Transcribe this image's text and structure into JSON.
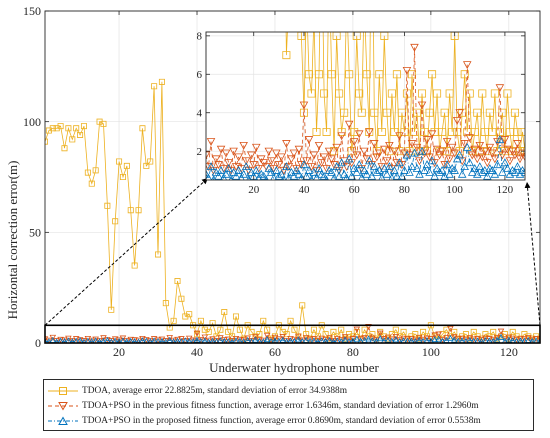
{
  "chart_data": [
    {
      "type": "line",
      "xlabel": "Underwater hydrophone number",
      "ylabel": "Horizontal correction error(m)",
      "xlim": [
        1,
        128
      ],
      "ylim": [
        0,
        150
      ],
      "xticks": [
        20,
        40,
        60,
        80,
        100,
        120
      ],
      "yticks": [
        0,
        50,
        100,
        150
      ],
      "grid": true,
      "legend_position": "bottom",
      "series": [
        {
          "name": "TDOA, average error 22.8825m, standard deviation of error 34.9388m",
          "color": "#EDB120",
          "marker": "square",
          "linestyle": "solid",
          "x": [
            1,
            2,
            3,
            4,
            5,
            6,
            7,
            8,
            9,
            10,
            11,
            12,
            13,
            14,
            15,
            16,
            17,
            18,
            19,
            20,
            21,
            22,
            23,
            24,
            25,
            26,
            27,
            28,
            29,
            30,
            31,
            32,
            33,
            34,
            35,
            36,
            37,
            38,
            39,
            40,
            41,
            42,
            43,
            44,
            45,
            46,
            47,
            48,
            49,
            50,
            51,
            52,
            53,
            54,
            55,
            56,
            57,
            58,
            59,
            60,
            61,
            62,
            63,
            64,
            65,
            66,
            67,
            68,
            69,
            70,
            71,
            72,
            73,
            74,
            75,
            76,
            77,
            78,
            79,
            80,
            81,
            82,
            83,
            84,
            85,
            86,
            87,
            88,
            89,
            90,
            91,
            92,
            93,
            94,
            95,
            96,
            97,
            98,
            99,
            100,
            101,
            102,
            103,
            104,
            105,
            106,
            107,
            108,
            109,
            110,
            111,
            112,
            113,
            114,
            115,
            116,
            117,
            118,
            119,
            120,
            121,
            122,
            123,
            124,
            125,
            126,
            127,
            128
          ],
          "y": [
            91,
            96,
            97,
            97,
            98,
            88,
            97,
            92,
            97,
            94,
            98,
            77,
            72,
            78,
            100,
            99,
            62,
            15,
            55,
            82,
            75,
            80,
            60,
            35,
            60,
            97,
            80,
            82,
            116,
            40,
            118,
            18,
            7,
            10,
            28,
            20,
            12,
            13,
            8,
            4,
            10,
            6,
            5,
            9,
            3,
            6,
            14,
            5,
            3,
            12,
            6,
            2,
            8,
            5,
            3,
            4,
            10,
            6,
            2,
            3,
            8,
            5,
            4,
            10,
            6,
            3,
            17,
            4,
            2,
            6,
            3,
            8,
            4,
            2,
            5,
            3,
            6,
            2,
            4,
            3,
            5,
            2,
            6,
            3,
            4,
            2,
            5,
            3,
            2,
            4,
            6,
            3,
            5,
            2,
            3,
            4,
            2,
            5,
            3,
            8,
            3,
            2,
            4,
            6,
            3,
            5,
            2,
            3,
            4,
            2,
            5,
            3,
            2,
            4,
            3,
            5,
            2,
            3,
            4,
            2,
            5,
            3,
            2,
            4,
            3,
            2,
            3,
            2
          ]
        },
        {
          "name": "TDOA+PSO in the previous fitness function, average error 1.6346m, standard deviation of error 1.2960m",
          "color": "#D95319",
          "marker": "triangle-down",
          "linestyle": "dashed",
          "x": [
            1,
            2,
            3,
            4,
            5,
            6,
            7,
            8,
            9,
            10,
            11,
            12,
            13,
            14,
            15,
            16,
            17,
            18,
            19,
            20,
            21,
            22,
            23,
            24,
            25,
            26,
            27,
            28,
            29,
            30,
            31,
            32,
            33,
            34,
            35,
            36,
            37,
            38,
            39,
            40,
            41,
            42,
            43,
            44,
            45,
            46,
            47,
            48,
            49,
            50,
            51,
            52,
            53,
            54,
            55,
            56,
            57,
            58,
            59,
            60,
            61,
            62,
            63,
            64,
            65,
            66,
            67,
            68,
            69,
            70,
            71,
            72,
            73,
            74,
            75,
            76,
            77,
            78,
            79,
            80,
            81,
            82,
            83,
            84,
            85,
            86,
            87,
            88,
            89,
            90,
            91,
            92,
            93,
            94,
            95,
            96,
            97,
            98,
            99,
            100,
            101,
            102,
            103,
            104,
            105,
            106,
            107,
            108,
            109,
            110,
            111,
            112,
            113,
            114,
            115,
            116,
            117,
            118,
            119,
            120,
            121,
            122,
            123,
            124,
            125,
            126,
            127,
            128
          ],
          "y": [
            1.8,
            1.2,
            2.5,
            1.0,
            1.6,
            1.3,
            2.1,
            1.1,
            1.9,
            1.4,
            1.0,
            2.0,
            1.2,
            1.7,
            1.1,
            2.3,
            1.5,
            1.0,
            1.8,
            1.3,
            2.2,
            1.1,
            1.6,
            1.4,
            1.2,
            2.0,
            1.5,
            1.1,
            1.9,
            1.3,
            1.7,
            1.0,
            2.4,
            1.2,
            1.6,
            1.9,
            1.1,
            2.1,
            1.3,
            4.4,
            1.5,
            2.6,
            1.2,
            1.8,
            1.0,
            2.3,
            1.4,
            1.7,
            1.1,
            2.0,
            1.6,
            1.3,
            2.2,
            1.0,
            2.8,
            1.5,
            1.2,
            3.4,
            1.4,
            2.5,
            1.8,
            2.9,
            1.1,
            2.0,
            1.6,
            3.0,
            1.3,
            2.4,
            1.7,
            1.9,
            1.2,
            2.1,
            1.5,
            2.3,
            1.1,
            2.0,
            1.4,
            2.8,
            1.3,
            1.9,
            6.2,
            1.8,
            2.4,
            7.4,
            2.2,
            1.5,
            4.4,
            1.9,
            2.6,
            1.7,
            2.9,
            1.4,
            2.1,
            1.8,
            2.0,
            1.3,
            2.5,
            1.6,
            2.2,
            1.9,
            3.6,
            4.0,
            1.5,
            2.4,
            6.5,
            2.7,
            1.8,
            2.1,
            1.6,
            2.3,
            1.7,
            2.0,
            1.4,
            2.2,
            1.9,
            1.6,
            2.5,
            5.3,
            1.8,
            2.6,
            2.1,
            1.5,
            2.0,
            1.8,
            2.4,
            1.6,
            1.9,
            1.7
          ]
        },
        {
          "name": "TDOA+PSO in the proposed fitness function, average error 0.8690m, standard deviation of error 0.5538m",
          "color": "#0072BD",
          "marker": "triangle-up",
          "linestyle": "dash-dot",
          "x": [
            1,
            2,
            3,
            4,
            5,
            6,
            7,
            8,
            9,
            10,
            11,
            12,
            13,
            14,
            15,
            16,
            17,
            18,
            19,
            20,
            21,
            22,
            23,
            24,
            25,
            26,
            27,
            28,
            29,
            30,
            31,
            32,
            33,
            34,
            35,
            36,
            37,
            38,
            39,
            40,
            41,
            42,
            43,
            44,
            45,
            46,
            47,
            48,
            49,
            50,
            51,
            52,
            53,
            54,
            55,
            56,
            57,
            58,
            59,
            60,
            61,
            62,
            63,
            64,
            65,
            66,
            67,
            68,
            69,
            70,
            71,
            72,
            73,
            74,
            75,
            76,
            77,
            78,
            79,
            80,
            81,
            82,
            83,
            84,
            85,
            86,
            87,
            88,
            89,
            90,
            91,
            92,
            93,
            94,
            95,
            96,
            97,
            98,
            99,
            100,
            101,
            102,
            103,
            104,
            105,
            106,
            107,
            108,
            109,
            110,
            111,
            112,
            113,
            114,
            115,
            116,
            117,
            118,
            119,
            120,
            121,
            122,
            123,
            124,
            125,
            126,
            127,
            128
          ],
          "y": [
            0.8,
            0.6,
            1.2,
            0.5,
            0.9,
            0.7,
            1.0,
            0.6,
            0.8,
            1.1,
            0.5,
            0.9,
            0.7,
            1.0,
            0.6,
            0.8,
            1.2,
            0.5,
            0.9,
            0.7,
            1.0,
            0.6,
            0.8,
            0.7,
            0.5,
            1.1,
            0.9,
            0.6,
            1.0,
            0.7,
            0.8,
            0.5,
            1.2,
            0.6,
            0.9,
            0.7,
            1.0,
            0.8,
            0.6,
            1.3,
            0.7,
            1.0,
            0.5,
            0.9,
            0.6,
            1.1,
            0.8,
            0.7,
            0.5,
            1.0,
            0.9,
            0.6,
            1.2,
            0.7,
            1.4,
            0.8,
            0.6,
            1.6,
            0.7,
            1.1,
            0.9,
            1.3,
            0.6,
            1.0,
            0.8,
            1.5,
            0.7,
            1.2,
            0.9,
            1.0,
            0.6,
            1.1,
            0.8,
            1.2,
            0.6,
            1.0,
            0.7,
            1.4,
            0.7,
            1.0,
            1.8,
            0.9,
            1.2,
            1.9,
            1.1,
            0.8,
            2.0,
            1.0,
            1.3,
            0.9,
            1.5,
            0.7,
            1.1,
            0.9,
            1.0,
            0.7,
            1.3,
            0.8,
            1.1,
            1.0,
            1.6,
            1.8,
            0.8,
            1.2,
            2.2,
            1.4,
            0.9,
            1.1,
            0.8,
            1.2,
            0.9,
            1.0,
            0.7,
            1.1,
            1.0,
            0.8,
            1.3,
            2.6,
            0.9,
            1.4,
            1.1,
            0.8,
            1.0,
            0.9,
            1.2,
            0.8,
            1.0,
            0.9
          ]
        }
      ]
    },
    {
      "type": "line",
      "role": "inset zoom of the lower region",
      "xlim": [
        1,
        128
      ],
      "ylim": [
        0.5,
        8.2
      ],
      "xticks": [
        20,
        40,
        60,
        80,
        100,
        120
      ],
      "yticks": [
        2,
        4,
        6,
        8
      ],
      "zoom_region": {
        "x": [
          1,
          128
        ],
        "y": [
          0,
          8
        ]
      },
      "grid": true
    }
  ]
}
